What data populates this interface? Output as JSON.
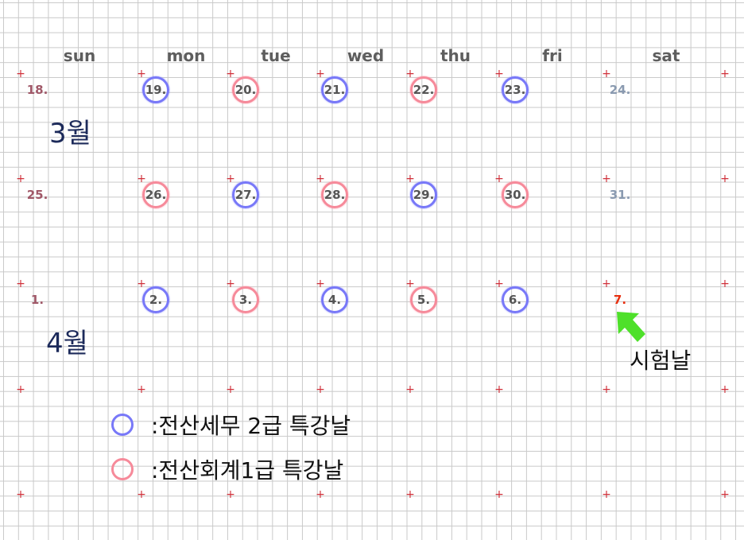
{
  "weekdays": [
    "sun",
    "mon",
    "tue",
    "wed",
    "thu",
    "fri",
    "sat"
  ],
  "weeks": [
    {
      "days": [
        {
          "n": "18.",
          "mark": "sun"
        },
        {
          "n": "19.",
          "mark": "blue"
        },
        {
          "n": "20.",
          "mark": "pink"
        },
        {
          "n": "21.",
          "mark": "blue"
        },
        {
          "n": "22.",
          "mark": "pink"
        },
        {
          "n": "23.",
          "mark": "blue"
        },
        {
          "n": "24.",
          "mark": "sat"
        }
      ]
    },
    {
      "days": [
        {
          "n": "25.",
          "mark": "sun"
        },
        {
          "n": "26.",
          "mark": "pink"
        },
        {
          "n": "27.",
          "mark": "blue"
        },
        {
          "n": "28.",
          "mark": "pink"
        },
        {
          "n": "29.",
          "mark": "blue"
        },
        {
          "n": "30.",
          "mark": "pink"
        },
        {
          "n": "31.",
          "mark": "sat"
        }
      ]
    },
    {
      "days": [
        {
          "n": "1.",
          "mark": "sun"
        },
        {
          "n": "2.",
          "mark": "blue"
        },
        {
          "n": "3.",
          "mark": "pink"
        },
        {
          "n": "4.",
          "mark": "blue"
        },
        {
          "n": "5.",
          "mark": "pink"
        },
        {
          "n": "6.",
          "mark": "blue"
        },
        {
          "n": "7.",
          "mark": "exam"
        }
      ]
    }
  ],
  "months": {
    "march": "3월",
    "april": "4월"
  },
  "exam_label": "시험날",
  "legend": [
    {
      "color": "#7878f8",
      "label": ":전산세무 2급 특강날"
    },
    {
      "color": "#f68a9a",
      "label": ":전산회계1급 특강날"
    }
  ],
  "colors": {
    "blue": "#7878f8",
    "pink": "#f68a9a",
    "exam": "#e83010",
    "arrow": "#4ee02a",
    "cross": "#d0303a"
  }
}
